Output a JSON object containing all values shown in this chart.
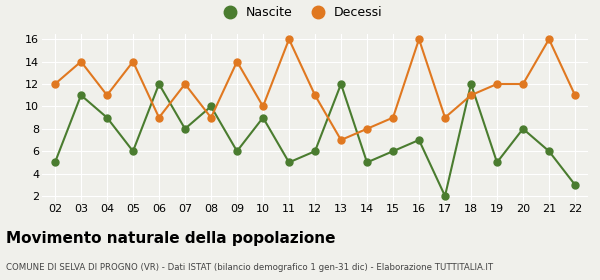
{
  "years": [
    "02",
    "03",
    "04",
    "05",
    "06",
    "07",
    "08",
    "09",
    "10",
    "11",
    "12",
    "13",
    "14",
    "15",
    "16",
    "17",
    "18",
    "19",
    "20",
    "21",
    "22"
  ],
  "nascite": [
    5,
    11,
    9,
    6,
    12,
    8,
    10,
    6,
    9,
    5,
    6,
    12,
    5,
    6,
    7,
    2,
    12,
    5,
    8,
    6,
    3
  ],
  "decessi": [
    12,
    14,
    11,
    14,
    9,
    12,
    9,
    14,
    10,
    16,
    11,
    7,
    8,
    9,
    16,
    9,
    11,
    12,
    12,
    16,
    11
  ],
  "nascite_color": "#4a7c2f",
  "decessi_color": "#e07820",
  "title": "Movimento naturale della popolazione",
  "subtitle": "COMUNE DI SELVA DI PROGNO (VR) - Dati ISTAT (bilancio demografico 1 gen-31 dic) - Elaborazione TUTTITALIA.IT",
  "legend_nascite": "Nascite",
  "legend_decessi": "Decessi",
  "ylim_min": 1.5,
  "ylim_max": 16.5,
  "yticks": [
    2,
    4,
    6,
    8,
    10,
    12,
    14,
    16
  ],
  "background_color": "#f0f0eb",
  "grid_color": "#ffffff",
  "marker_size": 5,
  "line_width": 1.5,
  "title_fontsize": 11,
  "subtitle_fontsize": 6.2,
  "tick_fontsize": 8,
  "legend_fontsize": 9
}
